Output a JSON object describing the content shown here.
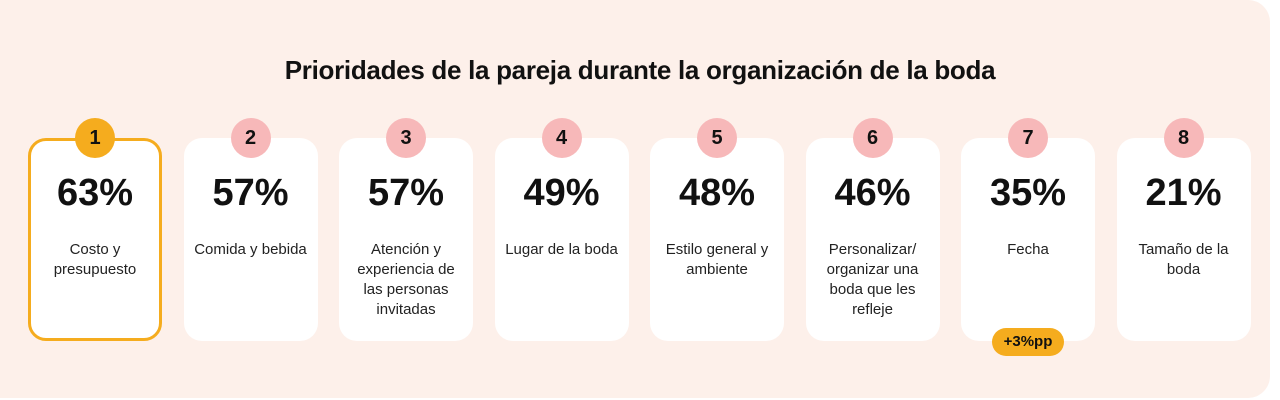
{
  "title": "Prioridades de la pareja durante la organización de la boda",
  "items": [
    {
      "rank": "1",
      "percent": "63%",
      "label": "Costo y presupuesto",
      "highlight": true
    },
    {
      "rank": "2",
      "percent": "57%",
      "label": "Comida y bebida"
    },
    {
      "rank": "3",
      "percent": "57%",
      "label": "Atención y experiencia de las personas invitadas"
    },
    {
      "rank": "4",
      "percent": "49%",
      "label": "Lugar de la boda"
    },
    {
      "rank": "5",
      "percent": "48%",
      "label": "Estilo general y ambiente"
    },
    {
      "rank": "6",
      "percent": "46%",
      "label": "Personalizar/ organizar una boda que les refleje"
    },
    {
      "rank": "7",
      "percent": "35%",
      "label": "Fecha",
      "delta": "+3%pp"
    },
    {
      "rank": "8",
      "percent": "21%",
      "label": "Tamaño de la boda"
    }
  ],
  "colors": {
    "background": "#fdf0ea",
    "highlight": "#f5ac1e",
    "badge": "#f7b8b9"
  }
}
